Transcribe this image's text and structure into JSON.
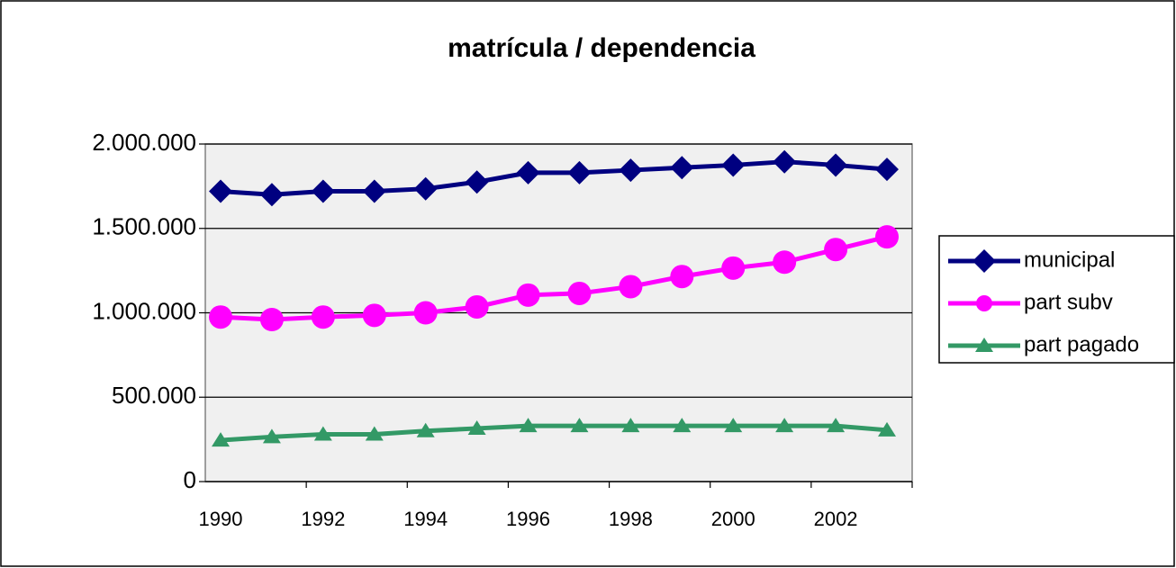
{
  "chart_data": {
    "type": "line",
    "title": "matrícula / dependencia",
    "categories": [
      "1990",
      null,
      "1992",
      null,
      "1994",
      null,
      "1996",
      null,
      "1998",
      null,
      "2000",
      null,
      "2002",
      null
    ],
    "series": [
      {
        "name": "municipal",
        "color": "#000080",
        "marker": "diamond",
        "values": [
          1720000,
          1700000,
          1720000,
          1720000,
          1735000,
          1775000,
          1830000,
          1830000,
          1845000,
          1860000,
          1875000,
          1895000,
          1875000,
          1850000
        ]
      },
      {
        "name": "part subv",
        "color": "#ff00ff",
        "marker": "circle",
        "values": [
          975000,
          960000,
          975000,
          985000,
          1000000,
          1035000,
          1105000,
          1115000,
          1155000,
          1215000,
          1265000,
          1300000,
          1375000,
          1450000
        ]
      },
      {
        "name": "part pagado",
        "color": "#339966",
        "marker": "triangle",
        "values": [
          245000,
          265000,
          280000,
          280000,
          300000,
          315000,
          330000,
          330000,
          330000,
          330000,
          330000,
          330000,
          330000,
          305000
        ]
      }
    ],
    "ylim": [
      0,
      2000000
    ],
    "yticks": [
      0,
      {
        "value": 500000,
        "label": "500.000"
      },
      {
        "value": 1000000,
        "label": "1.000.000"
      },
      {
        "value": 1500000,
        "label": "1.500.000"
      },
      {
        "value": 2000000,
        "label": "2.000.000"
      }
    ],
    "grid": true,
    "legend": "right"
  }
}
